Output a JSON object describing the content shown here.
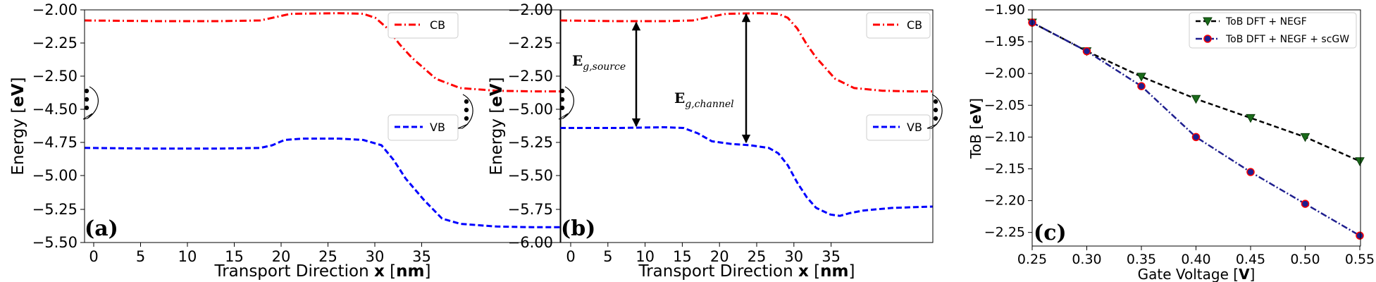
{
  "chart_data": [
    {
      "type": "line",
      "panel_label": "(a)",
      "xlabel": {
        "pre": "Transport Direction ",
        "bold1": "x",
        "mid": " [",
        "bold2": "nm",
        "post": "]"
      },
      "ylabel": {
        "pre": "Energy [",
        "bold": "eV",
        "post": "]"
      },
      "xlim": [
        -1,
        38.3
      ],
      "xticks": [
        "0",
        "5",
        "10",
        "15",
        "20",
        "25",
        "30",
        "35"
      ],
      "ylim": [
        -5.5,
        -2.0
      ],
      "yticks": [
        "−2.00",
        "−2.25",
        "−2.50",
        "−4.50",
        "−4.75",
        "−5.00",
        "−5.25",
        "−5.50"
      ],
      "axis_break": "y",
      "series": [
        {
          "name": "CB",
          "color": "#ff0000",
          "dash": "dashdot",
          "x": [
            -1,
            5,
            10,
            13.5,
            15,
            16,
            20,
            22,
            23,
            24,
            25,
            26,
            28,
            30,
            33,
            36,
            38.3
          ],
          "y": [
            -2.08,
            -2.085,
            -2.085,
            -2.08,
            -2.05,
            -2.03,
            -2.025,
            -2.03,
            -2.06,
            -2.14,
            -2.26,
            -2.36,
            -2.52,
            -2.59,
            -2.61,
            -2.615,
            -2.615
          ]
        },
        {
          "name": "VB",
          "color": "#0000ff",
          "dash": "dashed",
          "x": [
            -1,
            5,
            10,
            13.5,
            14.5,
            15.5,
            17,
            20,
            22,
            23.5,
            24.5,
            25.5,
            27,
            28.5,
            30,
            33,
            36,
            38.3
          ],
          "y": [
            -4.79,
            -4.795,
            -4.795,
            -4.79,
            -4.77,
            -4.73,
            -4.72,
            -4.72,
            -4.73,
            -4.77,
            -4.88,
            -5.02,
            -5.18,
            -5.32,
            -5.36,
            -5.38,
            -5.385,
            -5.385
          ]
        }
      ],
      "legend": [
        "top-right",
        "middle-right"
      ]
    },
    {
      "type": "line",
      "panel_label": "(b)",
      "xlabel": {
        "pre": "Transport Direction ",
        "bold1": "x",
        "mid": " [",
        "bold2": "nm",
        "post": "]"
      },
      "ylabel": {
        "pre": "Energy [",
        "bold": "eV",
        "post": "]"
      },
      "xlim": [
        -1,
        38.3
      ],
      "xticks": [
        "0",
        "5",
        "10",
        "15",
        "20",
        "25",
        "30",
        "35"
      ],
      "ylim": [
        -6.0,
        -2.0
      ],
      "yticks": [
        "−2.00",
        "−2.25",
        "−2.50",
        "−5.00",
        "−5.25",
        "−5.50",
        "−5.75",
        "−6.00"
      ],
      "axis_break": "y",
      "series": [
        {
          "name": "CB",
          "color": "#ff0000",
          "dash": "dashdot",
          "x": [
            -1,
            5,
            10,
            13,
            15,
            16.5,
            20,
            22,
            23,
            24,
            25,
            26,
            28,
            30,
            33,
            36,
            38.3
          ],
          "y": [
            -2.08,
            -2.085,
            -2.085,
            -2.08,
            -2.05,
            -2.03,
            -2.025,
            -2.03,
            -2.06,
            -2.14,
            -2.26,
            -2.36,
            -2.52,
            -2.59,
            -2.61,
            -2.615,
            -2.615
          ]
        },
        {
          "name": "VB",
          "color": "#0000ff",
          "dash": "dashed",
          "x": [
            -1,
            5,
            10,
            12,
            13.5,
            15,
            17,
            19,
            21,
            22,
            23,
            24,
            25,
            26,
            27.5,
            28.5,
            29.5,
            31,
            34,
            38.3
          ],
          "y": [
            -5.14,
            -5.14,
            -5.135,
            -5.14,
            -5.18,
            -5.24,
            -5.26,
            -5.27,
            -5.29,
            -5.33,
            -5.42,
            -5.55,
            -5.66,
            -5.74,
            -5.79,
            -5.8,
            -5.78,
            -5.76,
            -5.74,
            -5.73
          ]
        }
      ],
      "annotations": [
        {
          "label": "E",
          "sub": "g,source",
          "x": 7
        },
        {
          "label": "E",
          "sub": "g,channel",
          "x": 19
        }
      ],
      "legend": [
        "top-right",
        "middle-right"
      ]
    },
    {
      "type": "line",
      "panel_label": "(c)",
      "xlabel": {
        "pre": "Gate Voltage  [",
        "bold": "V",
        "post": "]"
      },
      "ylabel": {
        "pre": "ToB [",
        "bold": "eV",
        "post": "]"
      },
      "xlim": [
        0.25,
        0.55
      ],
      "xticks": [
        0.25,
        0.3,
        0.35,
        0.4,
        0.45,
        0.5,
        0.55
      ],
      "ylim": [
        -2.28,
        -1.9
      ],
      "yticks": [
        -1.9,
        -1.95,
        -2.0,
        -2.05,
        -2.1,
        -2.15,
        -2.2,
        -2.25
      ],
      "series": [
        {
          "name": "ToB DFT + NEGF",
          "color": "#000000",
          "marker_color": "#1a6b1a",
          "marker": "triangle-down",
          "dash": "dashed",
          "x": [
            0.25,
            0.3,
            0.35,
            0.4,
            0.45,
            0.5,
            0.55
          ],
          "y": [
            -1.92,
            -1.965,
            -2.005,
            -2.04,
            -2.07,
            -2.1,
            -2.138
          ]
        },
        {
          "name": "ToB DFT + NEGF + scGW",
          "color": "#1f1f8f",
          "marker_color": "#1f1f8f",
          "marker_edge": "#ff0000",
          "marker": "circle",
          "dash": "dashdot",
          "x": [
            0.25,
            0.3,
            0.35,
            0.4,
            0.45,
            0.5,
            0.55
          ],
          "y": [
            -1.92,
            -1.965,
            -2.02,
            -2.1,
            -2.155,
            -2.205,
            -2.255
          ]
        }
      ],
      "legend": "top-right"
    }
  ]
}
